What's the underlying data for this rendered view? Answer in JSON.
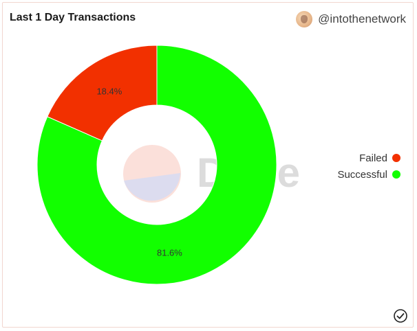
{
  "header": {
    "title": "Last 1 Day Transactions",
    "author": "@intothenetwork"
  },
  "watermark": {
    "text": "Dune"
  },
  "chart_data": {
    "type": "pie",
    "donut": true,
    "title": "Last 1 Day Transactions",
    "categories": [
      "Failed",
      "Successful"
    ],
    "values": [
      18.4,
      81.6
    ],
    "labels": [
      "18.4%",
      "81.6%"
    ],
    "colors": [
      "#f23000",
      "#12ff00"
    ],
    "legend_position": "right"
  },
  "icons": {
    "avatar": "avatar-icon",
    "status": "check-circle-icon"
  }
}
